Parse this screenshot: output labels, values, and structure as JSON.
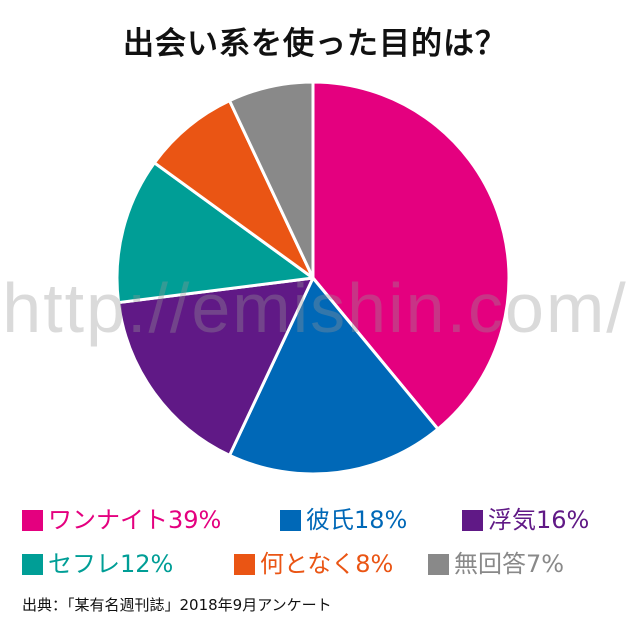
{
  "title": "出会い系を使った目的は？",
  "watermark": "http://emishin.com/",
  "source": "出典：「某有名週刊誌」2018年9月アンケート",
  "chart_data": {
    "type": "pie",
    "title": "出会い系を使った目的は？",
    "start_angle": "top",
    "direction": "clockwise",
    "legend_position": "bottom",
    "slices": [
      {
        "label": "ワンナイト",
        "value": 39,
        "unit": "%",
        "color": "#e4007f"
      },
      {
        "label": "彼氏",
        "value": 18,
        "unit": "%",
        "color": "#0068b7"
      },
      {
        "label": "浮気",
        "value": 16,
        "unit": "%",
        "color": "#601986"
      },
      {
        "label": "セフレ",
        "value": 12,
        "unit": "%",
        "color": "#009e96"
      },
      {
        "label": "何となく",
        "value": 8,
        "unit": "%",
        "color": "#ea5514"
      },
      {
        "label": "無回答",
        "value": 7,
        "unit": "%",
        "color": "#898989"
      }
    ]
  }
}
